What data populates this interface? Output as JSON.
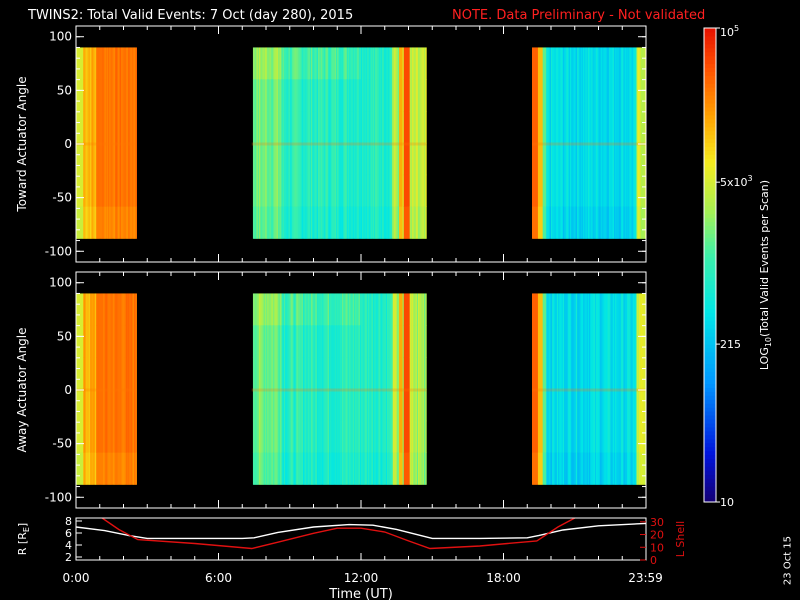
{
  "header": {
    "title": "TWINS2: Total Valid Events:  7 Oct (day 280), 2015",
    "note": "NOTE. Data Preliminary - Not validated"
  },
  "footer": {
    "date_stamp": "23 Oct 15"
  },
  "colors": {
    "background": "#000000",
    "axis": "#ffffff",
    "note": "#ff2020",
    "r_line": "#ffffff",
    "lshell_line": "#e01010"
  },
  "chart_data": [
    {
      "type": "heatmap",
      "ylabel": "Toward Actuator Angle",
      "x_ticks": [],
      "y_ticks": [
        -100,
        -50,
        0,
        50,
        100
      ],
      "ylim": [
        -110,
        110
      ],
      "xlim_hours": [
        0,
        24
      ],
      "data_angle_range": [
        -88,
        90
      ],
      "data_time_blocks": [
        {
          "start_h": 0.0,
          "end_h": 2.5
        },
        {
          "start_h": 7.4,
          "end_h": 14.75
        },
        {
          "start_h": 19.2,
          "end_h": 24.0
        }
      ],
      "bright_bands_h": [
        0.9,
        13.9,
        19.2
      ]
    },
    {
      "type": "heatmap",
      "ylabel": "Away Actuator Angle",
      "x_ticks": [],
      "y_ticks": [
        -100,
        -50,
        0,
        50,
        100
      ],
      "ylim": [
        -110,
        110
      ],
      "xlim_hours": [
        0,
        24
      ],
      "data_angle_range": [
        -88,
        90
      ],
      "data_time_blocks": [
        {
          "start_h": 0.0,
          "end_h": 2.5
        },
        {
          "start_h": 7.4,
          "end_h": 14.75
        },
        {
          "start_h": 19.2,
          "end_h": 24.0
        }
      ],
      "bright_bands_h": [
        0.9,
        13.9,
        19.2
      ]
    },
    {
      "type": "line",
      "xlabel": "Time (UT)",
      "ylabel": "R [R",
      "ylabel_sub": "E",
      "ylabel_close": "]",
      "ylabel_right": "L Shell",
      "x_ticks": [
        "0:00",
        "6:00",
        "12:00",
        "18:00",
        "23:59"
      ],
      "x_tick_hours": [
        0,
        6,
        12,
        18,
        23.98
      ],
      "y_ticks": [
        2,
        4,
        6,
        8
      ],
      "y_ticks_right": [
        0,
        10,
        20,
        30
      ],
      "ylim": [
        1.5,
        8.5
      ],
      "ylim_right": [
        0,
        33
      ],
      "series": [
        {
          "name": "",
          "axis": "left",
          "color": "#ffffff",
          "x": [
            0,
            1.2,
            2.2,
            3.0,
            5.0,
            7.0,
            7.5,
            8.5,
            10.0,
            11.5,
            12.5,
            13.5,
            14.5,
            15.0,
            17.0,
            19.0,
            19.5,
            20.5,
            22.0,
            24.0
          ],
          "y": [
            7.0,
            6.4,
            5.6,
            5.1,
            5.1,
            5.1,
            5.2,
            6.1,
            7.0,
            7.4,
            7.3,
            6.6,
            5.6,
            5.1,
            5.1,
            5.2,
            5.6,
            6.5,
            7.2,
            7.6
          ]
        },
        {
          "name": "",
          "axis": "right",
          "color": "#e01010",
          "x": [
            1.1,
            1.8,
            2.6,
            5.0,
            7.4,
            8.5,
            10.0,
            11.0,
            12.0,
            13.0,
            14.0,
            14.9,
            17.0,
            19.4,
            20.3,
            21.0
          ],
          "y": [
            33,
            24,
            16,
            13,
            9,
            14,
            21,
            25,
            25,
            22,
            15,
            9,
            11,
            15,
            26,
            33
          ]
        }
      ]
    }
  ],
  "colorbar": {
    "label": "LOG",
    "label_sub": "10",
    "label_rest": "(Total Valid Events per Scan)",
    "ticks": [
      {
        "value": 10,
        "text": "10"
      },
      {
        "value": 215,
        "text": "215"
      },
      {
        "value": 5000,
        "text": "5x10",
        "sup": "3"
      },
      {
        "value": 100000,
        "text": "10",
        "sup": "5"
      }
    ],
    "range": [
      10,
      100000
    ]
  }
}
